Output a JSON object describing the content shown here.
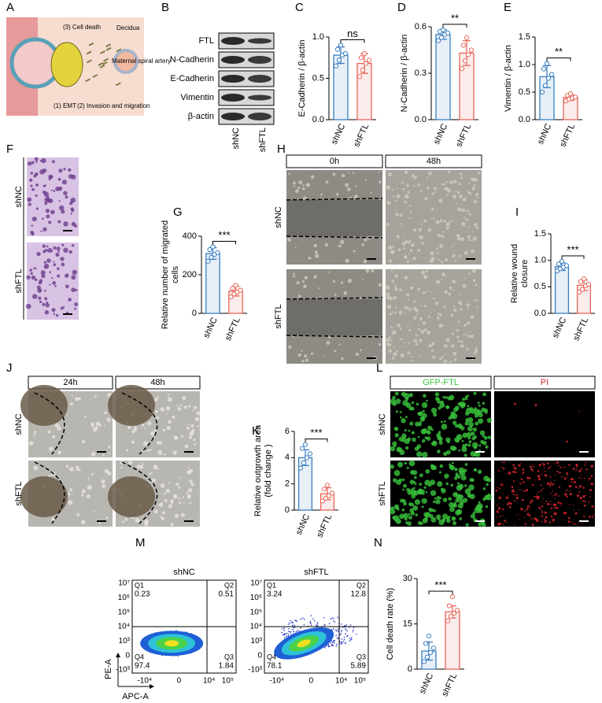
{
  "panel_labels": [
    "A",
    "B",
    "C",
    "D",
    "E",
    "F",
    "G",
    "H",
    "I",
    "J",
    "K",
    "L",
    "M",
    "N"
  ],
  "schematic": {
    "texts": [
      "(3) Cell death",
      "Decidua",
      "Maternal spiral artery",
      "(1) EMT",
      "(2) Invasion and migration"
    ]
  },
  "blot": {
    "proteins": [
      "FTL",
      "N-Cadherin",
      "E-Cadherin",
      "Vimentin",
      "β-actin"
    ],
    "lanes": [
      "shNC",
      "shFTL"
    ]
  },
  "transwell": {
    "rows": [
      "shNC",
      "shFTL"
    ]
  },
  "wound": {
    "columns": [
      "0h",
      "48h"
    ],
    "rows": [
      "shNC",
      "shFTL"
    ]
  },
  "spheroid": {
    "columns": [
      "24h",
      "48h"
    ],
    "rows": [
      "shNC",
      "shFTL"
    ]
  },
  "staining": {
    "columns": [
      "GFP-FTL",
      "PI"
    ],
    "rows": [
      "shNC",
      "shFTL"
    ]
  },
  "flow": {
    "y_label": "PE-A",
    "x_label": "APC-A",
    "y_ticks": [
      "10⁷",
      "10⁶",
      "10⁵",
      "10⁴",
      "10³",
      "0",
      "-10³"
    ],
    "x_ticks": [
      "-10⁴",
      "0",
      "10⁴",
      "10⁵"
    ],
    "plots": [
      {
        "title": "shNC",
        "quadrants": [
          {
            "name": "Q1",
            "value": 0.23
          },
          {
            "name": "Q2",
            "value": 0.51
          },
          {
            "name": "Q4",
            "value": 97.4
          },
          {
            "name": "Q3",
            "value": 1.84
          }
        ]
      },
      {
        "title": "shFTL",
        "quadrants": [
          {
            "name": "Q1",
            "value": 3.24
          },
          {
            "name": "Q2",
            "value": 12.8
          },
          {
            "name": "Q4",
            "value": 78.1
          },
          {
            "name": "Q3",
            "value": 5.89
          }
        ]
      }
    ]
  },
  "chart_data": [
    {
      "type": "bar",
      "y_label": "E-Cadherin / β-actin",
      "categories": [
        "shNC",
        "shFTL"
      ],
      "colors": [
        "#3a7fc1",
        "#e8665a"
      ],
      "values": [
        0.78,
        0.68
      ],
      "errors": [
        0.1,
        0.12
      ],
      "points": [
        [
          0.65,
          0.72,
          0.78,
          0.8,
          0.85,
          0.9
        ],
        [
          0.52,
          0.6,
          0.68,
          0.72,
          0.75,
          0.8
        ]
      ],
      "significance": "ns",
      "ylim": [
        0,
        1.0
      ],
      "yticks": [
        {
          "value": 0,
          "label": "0.0"
        },
        0.5,
        {
          "value": 1,
          "label": "1.0"
        }
      ]
    },
    {
      "type": "bar",
      "y_label": "N-Cadherin / β-actin",
      "categories": [
        "shNC",
        "shFTL"
      ],
      "colors": [
        "#3a7fc1",
        "#e8665a"
      ],
      "values": [
        0.55,
        0.43
      ],
      "errors": [
        0.03,
        0.08
      ],
      "points": [
        [
          0.51,
          0.53,
          0.55,
          0.56,
          0.57,
          0.58
        ],
        [
          0.33,
          0.38,
          0.42,
          0.45,
          0.48,
          0.53
        ]
      ],
      "significance": "**",
      "ylim": [
        0,
        0.6
      ],
      "yticks": [
        {
          "value": 0,
          "label": "0.0"
        },
        0.3,
        0.6
      ]
    },
    {
      "type": "bar",
      "y_label": "Vimentin / β-actin",
      "categories": [
        "shNC",
        "shFTL"
      ],
      "colors": [
        "#3a7fc1",
        "#e8665a"
      ],
      "values": [
        0.78,
        0.4
      ],
      "errors": [
        0.2,
        0.05
      ],
      "points": [
        [
          0.5,
          0.62,
          0.75,
          0.82,
          0.92,
          1.02
        ],
        [
          0.34,
          0.37,
          0.39,
          0.41,
          0.44,
          0.47
        ]
      ],
      "significance": "**",
      "ylim": [
        0,
        1.5
      ],
      "yticks": [
        {
          "value": 0,
          "label": "0.0"
        },
        0.5,
        {
          "value": 1,
          "label": "1.0"
        },
        1.5
      ]
    },
    {
      "type": "bar",
      "y_label": "Relative number of migrated cells",
      "categories": [
        "shNC",
        "shFTL"
      ],
      "colors": [
        "#3a7fc1",
        "#e8665a"
      ],
      "values": [
        310,
        115
      ],
      "errors": [
        30,
        25
      ],
      "points": [
        [
          270,
          290,
          305,
          315,
          330,
          345
        ],
        [
          85,
          100,
          110,
          120,
          130,
          145
        ]
      ],
      "significance": "***",
      "ylim": [
        0,
        400
      ],
      "yticks": [
        0,
        200,
        400
      ]
    },
    {
      "type": "bar",
      "y_label": "Relative wound closure",
      "categories": [
        "shNC",
        "shFTL"
      ],
      "colors": [
        "#3a7fc1",
        "#e8665a"
      ],
      "values": [
        0.88,
        0.53
      ],
      "errors": [
        0.07,
        0.1
      ],
      "points": [
        [
          0.8,
          0.84,
          0.87,
          0.9,
          0.93,
          0.98
        ],
        [
          0.4,
          0.45,
          0.52,
          0.55,
          0.6,
          0.65
        ]
      ],
      "significance": "***",
      "ylim": [
        0,
        1.5
      ],
      "yticks": [
        {
          "value": 0,
          "label": "0.0"
        },
        0.5,
        {
          "value": 1,
          "label": "1.0"
        },
        1.5
      ]
    },
    {
      "type": "bar",
      "y_label": "Relative outgrowth area (fold change )",
      "categories": [
        "shNC",
        "shFTL"
      ],
      "colors": [
        "#3a7fc1",
        "#e8665a"
      ],
      "values": [
        4.0,
        1.25
      ],
      "errors": [
        0.6,
        0.45
      ],
      "points": [
        [
          3.2,
          3.6,
          4.0,
          4.3,
          4.7,
          5.0
        ],
        [
          0.7,
          0.9,
          1.1,
          1.3,
          1.6,
          1.9
        ]
      ],
      "significance": "***",
      "ylim": [
        0,
        6
      ],
      "yticks": [
        0,
        2,
        4,
        6
      ]
    },
    {
      "type": "bar",
      "y_label": "Cell death rate (%)",
      "categories": [
        "shNC",
        "shFTL"
      ],
      "colors": [
        "#3a7fc1",
        "#e8665a"
      ],
      "values": [
        6,
        19
      ],
      "errors": [
        3,
        2
      ],
      "points": [
        [
          2.5,
          4,
          5.5,
          7,
          8.5,
          11
        ],
        [
          16,
          17.5,
          18.5,
          19.5,
          21,
          24
        ]
      ],
      "significance": "***",
      "ylim": [
        0,
        30
      ],
      "yticks": [
        0,
        15,
        30
      ]
    }
  ]
}
